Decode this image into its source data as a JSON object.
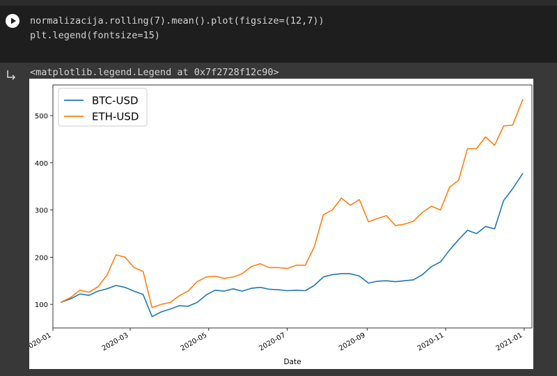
{
  "cell": {
    "code_lines": [
      "normalizacija.rolling(7).mean().plot(figsize=(12,7))",
      "plt.legend(fontsize=15)"
    ],
    "output_text": "<matplotlib.legend.Legend at 0x7f2728f12c90>"
  },
  "icons": {
    "run": "play-icon",
    "output": "output-arrow-icon"
  },
  "colors": {
    "btc": "#1f77b4",
    "eth": "#ff7f0e",
    "editor_bg": "#1e1e1e",
    "output_bg": "#383838"
  },
  "chart_data": {
    "type": "line",
    "title": "",
    "xlabel": "Date",
    "ylabel": "",
    "legend_position": "top-left",
    "grid": false,
    "ylim": [
      50,
      565
    ],
    "xlim": [
      "2020-01-01",
      "2021-01-07"
    ],
    "x_ticks": [
      "2020-01",
      "2020-03",
      "2020-05",
      "2020-07",
      "2020-09",
      "2020-11",
      "2021-01"
    ],
    "y_ticks": [
      100,
      200,
      300,
      400,
      500
    ],
    "x": [
      "2020-01-07",
      "2020-01-15",
      "2020-01-22",
      "2020-01-29",
      "2020-02-05",
      "2020-02-12",
      "2020-02-19",
      "2020-02-26",
      "2020-03-04",
      "2020-03-11",
      "2020-03-18",
      "2020-03-25",
      "2020-04-01",
      "2020-04-08",
      "2020-04-15",
      "2020-04-22",
      "2020-04-29",
      "2020-05-06",
      "2020-05-13",
      "2020-05-20",
      "2020-05-27",
      "2020-06-03",
      "2020-06-10",
      "2020-06-17",
      "2020-06-24",
      "2020-07-01",
      "2020-07-08",
      "2020-07-15",
      "2020-07-22",
      "2020-07-29",
      "2020-08-05",
      "2020-08-12",
      "2020-08-19",
      "2020-08-26",
      "2020-09-02",
      "2020-09-09",
      "2020-09-16",
      "2020-09-23",
      "2020-09-30",
      "2020-10-07",
      "2020-10-14",
      "2020-10-21",
      "2020-10-28",
      "2020-11-04",
      "2020-11-11",
      "2020-11-18",
      "2020-11-25",
      "2020-12-02",
      "2020-12-09",
      "2020-12-16",
      "2020-12-23",
      "2020-12-31"
    ],
    "series": [
      {
        "name": "BTC-USD",
        "values": [
          104,
          112,
          122,
          119,
          128,
          133,
          140,
          136,
          128,
          121,
          74,
          84,
          90,
          97,
          96,
          104,
          120,
          130,
          128,
          133,
          128,
          134,
          136,
          132,
          131,
          129,
          130,
          129,
          140,
          158,
          163,
          165,
          165,
          160,
          145,
          149,
          150,
          148,
          150,
          152,
          163,
          180,
          190,
          215,
          237,
          257,
          250,
          265,
          260,
          320,
          345,
          378
        ]
      },
      {
        "name": "ETH-USD",
        "values": [
          104,
          115,
          130,
          126,
          137,
          162,
          205,
          200,
          178,
          170,
          93,
          100,
          104,
          118,
          128,
          148,
          158,
          160,
          155,
          158,
          165,
          180,
          186,
          178,
          178,
          176,
          183,
          183,
          222,
          290,
          300,
          325,
          310,
          322,
          275,
          282,
          288,
          267,
          270,
          276,
          295,
          308,
          300,
          348,
          363,
          430,
          430,
          455,
          437,
          478,
          480,
          535
        ]
      }
    ]
  }
}
